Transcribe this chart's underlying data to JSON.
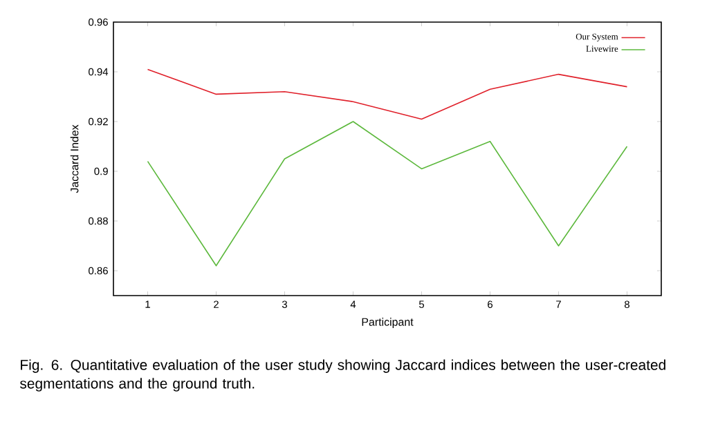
{
  "chart_data": {
    "type": "line",
    "xlabel": "Participant",
    "ylabel": "Jaccard Index",
    "x": [
      1,
      2,
      3,
      4,
      5,
      6,
      7,
      8
    ],
    "series": [
      {
        "name": "Our System",
        "color": "#e0202a",
        "values": [
          0.941,
          0.931,
          0.932,
          0.928,
          0.921,
          0.933,
          0.939,
          0.934
        ]
      },
      {
        "name": "Livewire",
        "color": "#5cb83c",
        "values": [
          0.904,
          0.862,
          0.905,
          0.92,
          0.901,
          0.912,
          0.87,
          0.91
        ]
      }
    ],
    "xlim": [
      0.5,
      8.5
    ],
    "xticks": [
      1,
      2,
      3,
      4,
      5,
      6,
      7,
      8
    ],
    "ylim": [
      0.85,
      0.96
    ],
    "yticks": [
      0.86,
      0.88,
      0.9,
      0.92,
      0.94,
      0.96
    ],
    "legend": "top right",
    "grid": false,
    "marker": "none",
    "line_style": "solid",
    "annotations": [
      "Fig. 6. Quantitative evaluation of the user study showing Jaccard indices between the user-created segmentations and the ground truth."
    ]
  }
}
